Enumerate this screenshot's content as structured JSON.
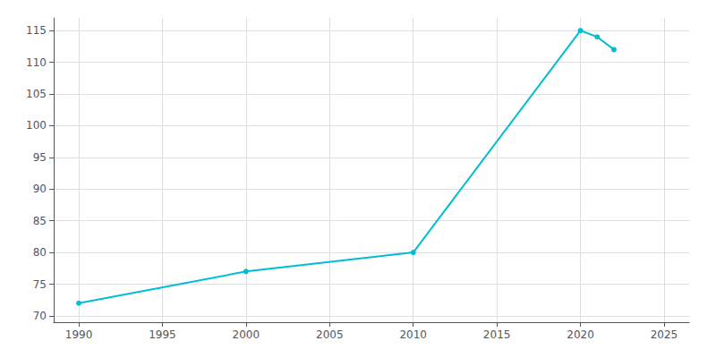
{
  "chart_data": {
    "type": "line",
    "x": [
      1990,
      2000,
      2010,
      2020,
      2021,
      2022
    ],
    "values": [
      72,
      77,
      80,
      115,
      114,
      112
    ],
    "color": "#00bcd4",
    "marker": "circle",
    "xlim": [
      1988.5,
      2026.5
    ],
    "ylim": [
      69,
      117
    ],
    "xticks": [
      1990,
      1995,
      2000,
      2005,
      2010,
      2015,
      2020,
      2025
    ],
    "yticks": [
      70,
      75,
      80,
      85,
      90,
      95,
      100,
      105,
      110,
      115
    ],
    "grid": true
  }
}
